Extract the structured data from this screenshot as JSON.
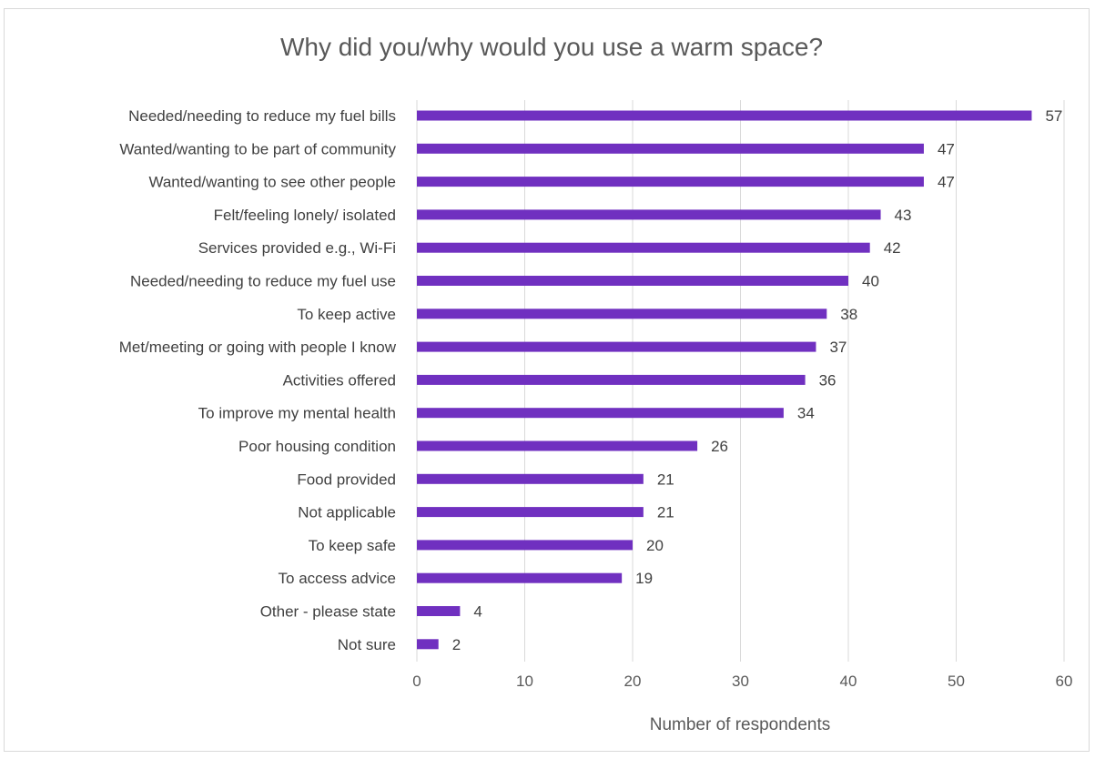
{
  "chart_data": {
    "type": "bar",
    "orientation": "horizontal",
    "title": "Why did you/why would you use a warm space?",
    "xlabel": "Number of respondents",
    "ylabel": "",
    "xlim": [
      0,
      60
    ],
    "xticks": [
      0,
      10,
      20,
      30,
      40,
      50,
      60
    ],
    "grid": true,
    "bar_color": "#7030c0",
    "data_labels": true,
    "categories": [
      "Needed/needing to reduce my fuel bills",
      "Wanted/wanting to be part of community",
      "Wanted/wanting to see other people",
      "Felt/feeling lonely/ isolated",
      "Services provided e.g., Wi-Fi",
      "Needed/needing to reduce my fuel use",
      "To keep active",
      "Met/meeting or going with people I know",
      "Activities offered",
      "To improve my mental health",
      "Poor housing condition",
      "Food provided",
      "Not applicable",
      "To keep safe",
      "To access advice",
      "Other - please state",
      "Not sure"
    ],
    "values": [
      57,
      47,
      47,
      43,
      42,
      40,
      38,
      37,
      36,
      34,
      26,
      21,
      21,
      20,
      19,
      4,
      2
    ]
  }
}
